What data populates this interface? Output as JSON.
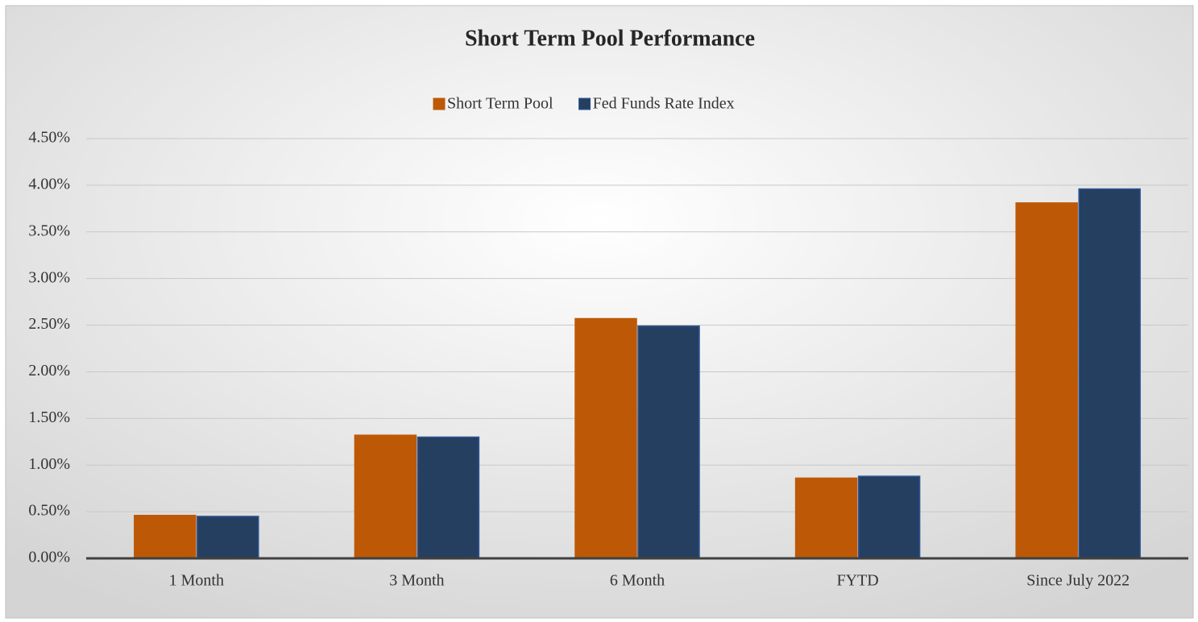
{
  "chart_data": {
    "type": "bar",
    "title": "Short Term Pool Performance",
    "categories": [
      "1 Month",
      "3 Month",
      "6 Month",
      "FYTD",
      "Since July 2022"
    ],
    "series": [
      {
        "name": "Short Term Pool",
        "color": "#bd5906",
        "values": [
          0.46,
          1.32,
          2.57,
          0.86,
          3.81
        ]
      },
      {
        "name": "Fed Funds Rate Index",
        "color": "#243f60",
        "values": [
          0.45,
          1.3,
          2.49,
          0.88,
          3.96
        ]
      }
    ],
    "ylim": [
      0,
      4.5
    ],
    "yticks": [
      {
        "value": 0,
        "label": "0.00%"
      },
      {
        "value": 0.5,
        "label": "0.50%"
      },
      {
        "value": 1,
        "label": "1.00%"
      },
      {
        "value": 1.5,
        "label": "1.50%"
      },
      {
        "value": 2,
        "label": "2.00%"
      },
      {
        "value": 2.5,
        "label": "2.50%"
      },
      {
        "value": 3,
        "label": "3.00%"
      },
      {
        "value": 3.5,
        "label": "3.50%"
      },
      {
        "value": 4,
        "label": "4.00%"
      },
      {
        "value": 4.5,
        "label": "4.50%"
      }
    ],
    "grid": true,
    "legend": "top"
  }
}
